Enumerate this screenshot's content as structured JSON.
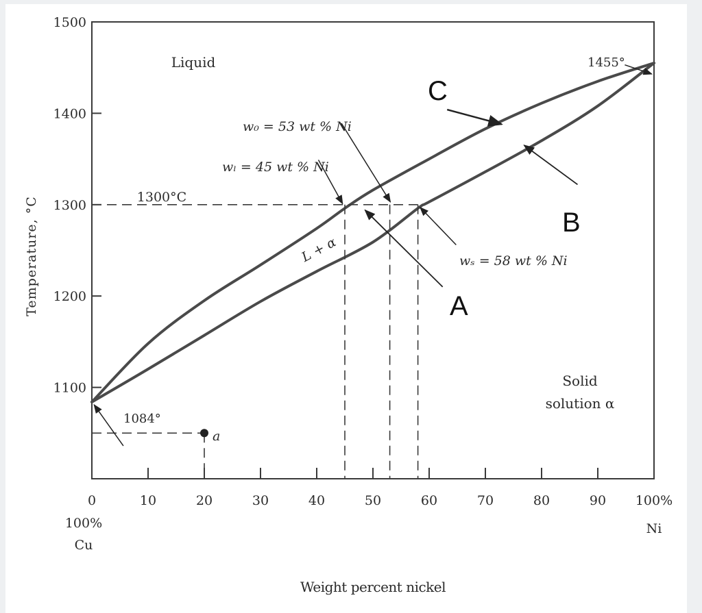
{
  "chart_data": {
    "type": "line",
    "title": "",
    "xlabel": "Weight percent nickel",
    "ylabel": "Temperature, °C",
    "xlim": [
      0,
      100
    ],
    "ylim": [
      1000,
      1500
    ],
    "x_ticks": [
      "0",
      "10",
      "20",
      "30",
      "40",
      "50",
      "60",
      "70",
      "80",
      "90",
      "100%"
    ],
    "y_ticks": [
      "1100",
      "1200",
      "1300",
      "1400",
      "1500"
    ],
    "x_end_labels": {
      "left_pct": "100%",
      "left_el": "Cu",
      "right_el": "Ni"
    },
    "series": [
      {
        "x": [
          0,
          10,
          20,
          30,
          40,
          45,
          50,
          60,
          70,
          80,
          90,
          100
        ],
        "y": [
          1084,
          1148,
          1195,
          1234,
          1274,
          1296,
          1316,
          1350,
          1383,
          1411,
          1435,
          1455
        ]
      },
      {
        "x": [
          0,
          10,
          20,
          30,
          40,
          50,
          58,
          60,
          70,
          80,
          90,
          100
        ],
        "y": [
          1084,
          1120,
          1157,
          1194,
          1227,
          1259,
          1296,
          1303,
          1336,
          1370,
          1408,
          1455
        ]
      }
    ],
    "regions": {
      "liquid": "Liquid",
      "two_phase": "L + α",
      "solid_line1": "Solid",
      "solid_line2": "solution α"
    },
    "annotations": {
      "t1300": "1300°C",
      "cu_melt": "1084°",
      "ni_melt": "1455°",
      "w0": "w₀ = 53 wt % Ni",
      "wl": "wₗ = 45 wt % Ni",
      "ws": "wₛ = 58 wt % Ni",
      "point_a": "a",
      "label_a": "A",
      "label_b": "B",
      "label_c": "C"
    },
    "tie_line": {
      "temperature": 1300,
      "x_liquid": 45,
      "x_overall": 53,
      "x_solid": 58
    },
    "point": {
      "x": 20,
      "y": 1050
    },
    "grid": false
  }
}
